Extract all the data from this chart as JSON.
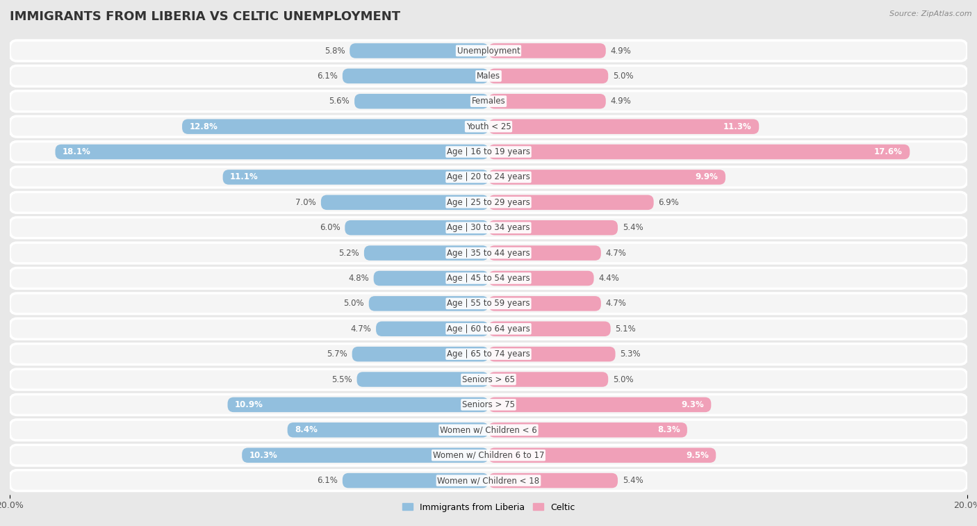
{
  "title": "IMMIGRANTS FROM LIBERIA VS CELTIC UNEMPLOYMENT",
  "source": "Source: ZipAtlas.com",
  "categories": [
    "Unemployment",
    "Males",
    "Females",
    "Youth < 25",
    "Age | 16 to 19 years",
    "Age | 20 to 24 years",
    "Age | 25 to 29 years",
    "Age | 30 to 34 years",
    "Age | 35 to 44 years",
    "Age | 45 to 54 years",
    "Age | 55 to 59 years",
    "Age | 60 to 64 years",
    "Age | 65 to 74 years",
    "Seniors > 65",
    "Seniors > 75",
    "Women w/ Children < 6",
    "Women w/ Children 6 to 17",
    "Women w/ Children < 18"
  ],
  "liberia_values": [
    5.8,
    6.1,
    5.6,
    12.8,
    18.1,
    11.1,
    7.0,
    6.0,
    5.2,
    4.8,
    5.0,
    4.7,
    5.7,
    5.5,
    10.9,
    8.4,
    10.3,
    6.1
  ],
  "celtic_values": [
    4.9,
    5.0,
    4.9,
    11.3,
    17.6,
    9.9,
    6.9,
    5.4,
    4.7,
    4.4,
    4.7,
    5.1,
    5.3,
    5.0,
    9.3,
    8.3,
    9.5,
    5.4
  ],
  "liberia_color": "#92bfde",
  "celtic_color": "#f0a0b8",
  "bg_color": "#e8e8e8",
  "row_bg_color": "#f5f5f5",
  "x_max": 20.0,
  "legend_liberia": "Immigrants from Liberia",
  "legend_celtic": "Celtic",
  "title_fontsize": 13,
  "label_fontsize": 8.5,
  "value_fontsize": 8.5
}
